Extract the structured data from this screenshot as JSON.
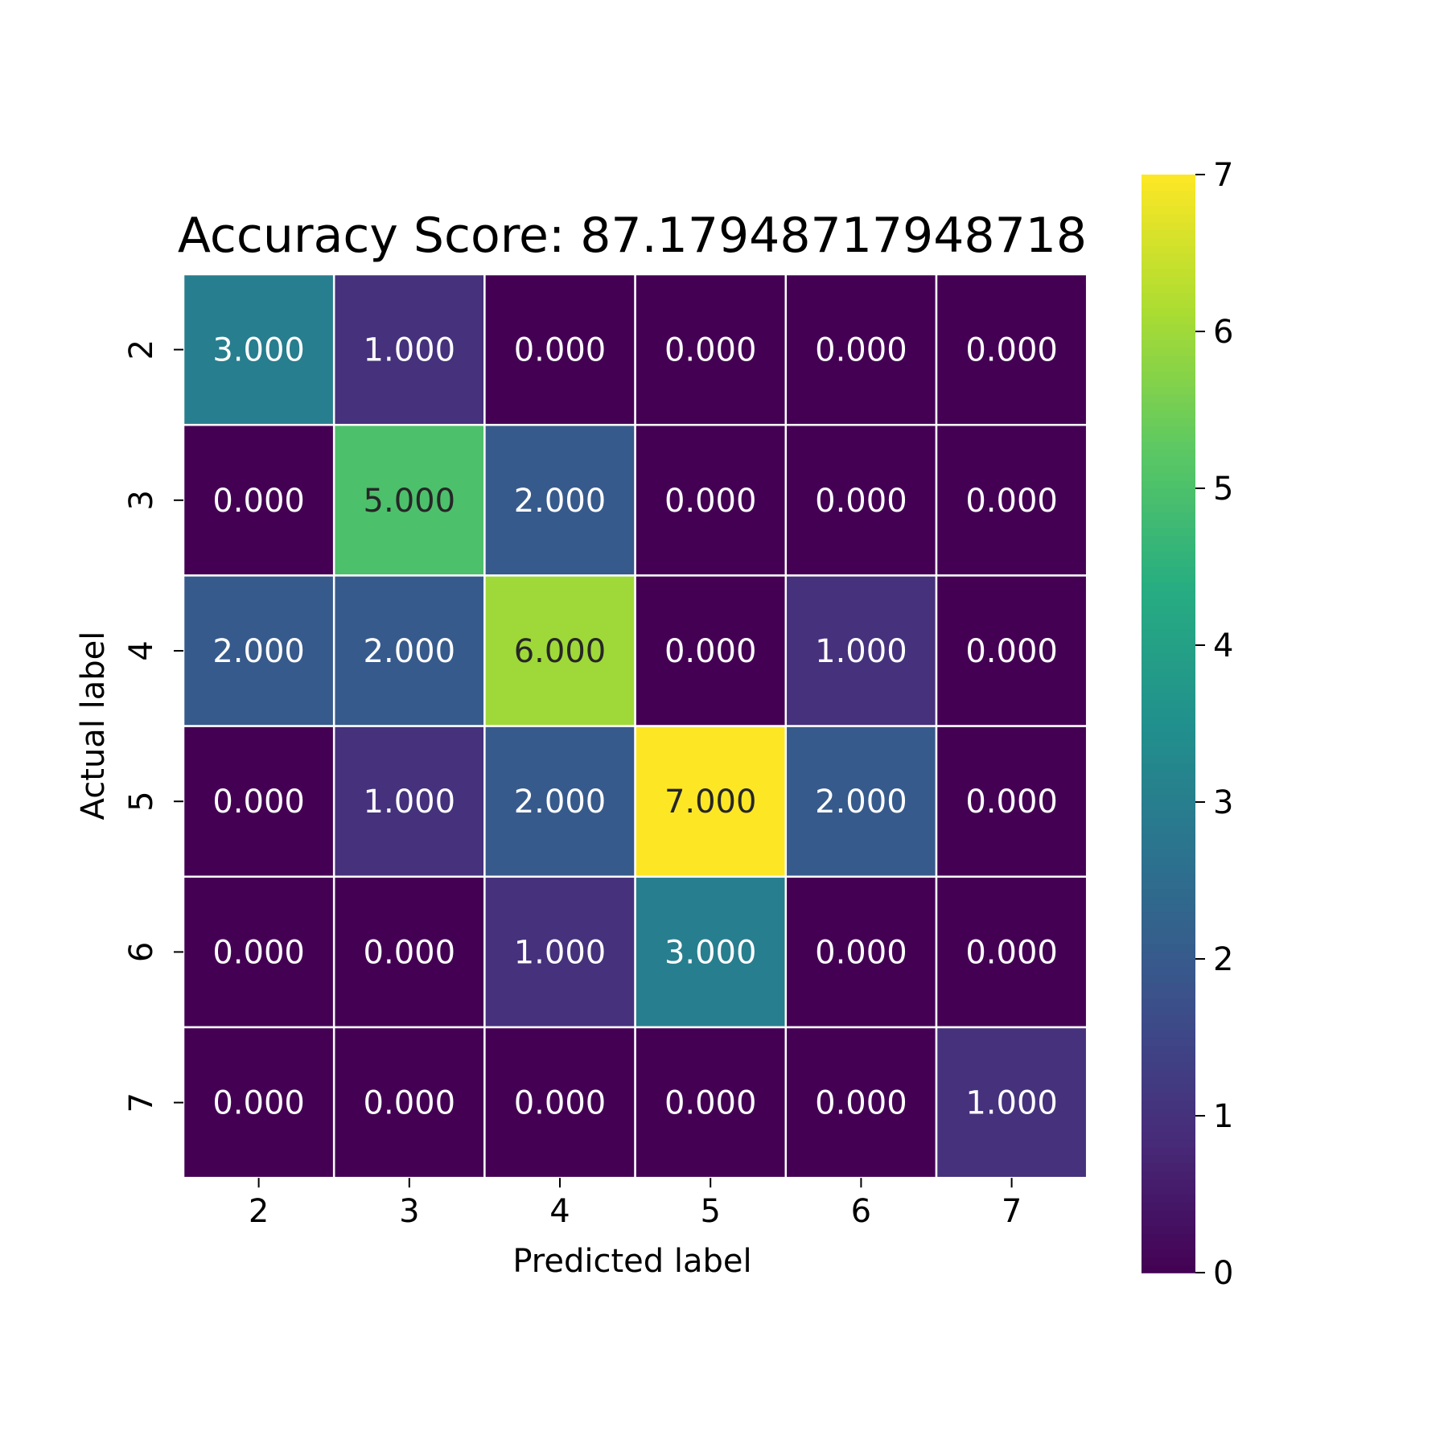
{
  "chart_data": {
    "type": "heatmap",
    "title": "Accuracy Score: 87.17948717948718",
    "xlabel": "Predicted label",
    "ylabel": "Actual label",
    "x_categories": [
      "2",
      "3",
      "4",
      "5",
      "6",
      "7"
    ],
    "y_categories": [
      "2",
      "3",
      "4",
      "5",
      "6",
      "7"
    ],
    "values": [
      [
        3,
        1,
        0,
        0,
        0,
        0
      ],
      [
        0,
        5,
        2,
        0,
        0,
        0
      ],
      [
        2,
        2,
        6,
        0,
        1,
        0
      ],
      [
        0,
        1,
        2,
        7,
        2,
        0
      ],
      [
        0,
        0,
        1,
        3,
        0,
        0
      ],
      [
        0,
        0,
        0,
        0,
        0,
        1
      ]
    ],
    "cell_labels": [
      [
        "3.000",
        "1.000",
        "0.000",
        "0.000",
        "0.000",
        "0.000"
      ],
      [
        "0.000",
        "5.000",
        "2.000",
        "0.000",
        "0.000",
        "0.000"
      ],
      [
        "2.000",
        "2.000",
        "6.000",
        "0.000",
        "1.000",
        "0.000"
      ],
      [
        "0.000",
        "1.000",
        "2.000",
        "7.000",
        "2.000",
        "0.000"
      ],
      [
        "0.000",
        "0.000",
        "1.000",
        "3.000",
        "0.000",
        "0.000"
      ],
      [
        "0.000",
        "0.000",
        "0.000",
        "0.000",
        "0.000",
        "1.000"
      ]
    ],
    "colormap": "viridis",
    "vmin": 0,
    "vmax": 7,
    "colorbar_ticks": [
      "0",
      "1",
      "2",
      "3",
      "4",
      "5",
      "6",
      "7"
    ],
    "grid": false,
    "colors": {
      "cell_border": "#ffffff",
      "text_light": "#ffffff",
      "text_dark": "#262626",
      "axis_text": "#000000"
    }
  }
}
